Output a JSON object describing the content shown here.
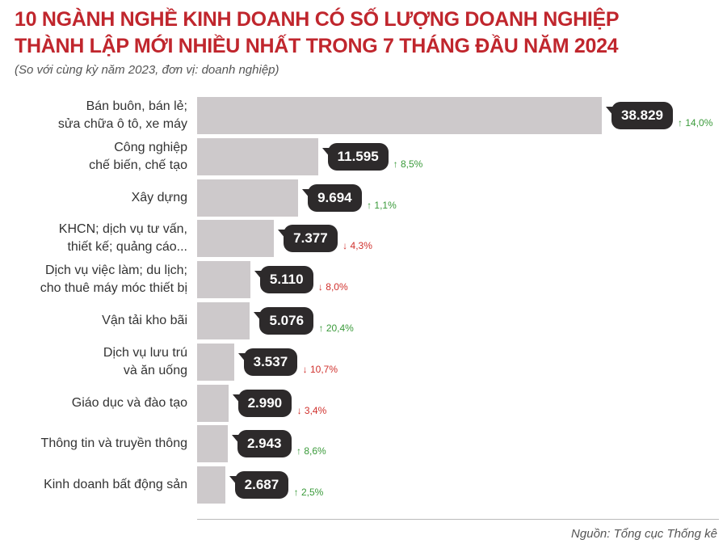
{
  "chart_data": {
    "type": "bar",
    "orientation": "horizontal",
    "title": "10 NGÀNH NGHỀ KINH DOANH CÓ SỐ LƯỢNG DOANH NGHIỆP\nTHÀNH LẬP MỚI NHIỀU NHẤT TRONG 7 THÁNG ĐẦU NĂM 2024",
    "subtitle": "(So với cùng kỳ năm 2023, đơn vị: doanh nghiệp)",
    "categories": [
      "Bán buôn, bán lẻ;\nsửa chữa ô tô, xe máy",
      "Công nghiệp\nchế biến, chế tạo",
      "Xây dựng",
      "KHCN; dịch vụ tư vấn,\nthiết kế; quảng cáo...",
      "Dịch vụ việc làm; du lịch;\ncho thuê máy móc thiết bị",
      "Vận tải kho bãi",
      "Dịch vụ lưu trú\nvà ăn uống",
      "Giáo dục và đào tạo",
      "Thông tin và truyền thông",
      "Kinh doanh bất động sản"
    ],
    "values": [
      38829,
      11595,
      9694,
      7377,
      5110,
      5076,
      3537,
      2990,
      2943,
      2687
    ],
    "value_labels": [
      "38.829",
      "11.595",
      "9.694",
      "7.377",
      "5.110",
      "5.076",
      "3.537",
      "2.990",
      "2.943",
      "2.687"
    ],
    "changes": [
      14.0,
      8.5,
      1.1,
      -4.3,
      -8.0,
      20.4,
      -10.7,
      -3.4,
      8.6,
      2.5
    ],
    "change_labels": [
      "14,0%",
      "8,5%",
      "1,1%",
      "4,3%",
      "8,0%",
      "20,4%",
      "10,7%",
      "3,4%",
      "8,6%",
      "2,5%"
    ],
    "color": "#cdc9cb",
    "up_color": "#3a9a3a",
    "down_color": "#d0312d",
    "source": "Nguồn: Tổng cục Thống kê"
  }
}
